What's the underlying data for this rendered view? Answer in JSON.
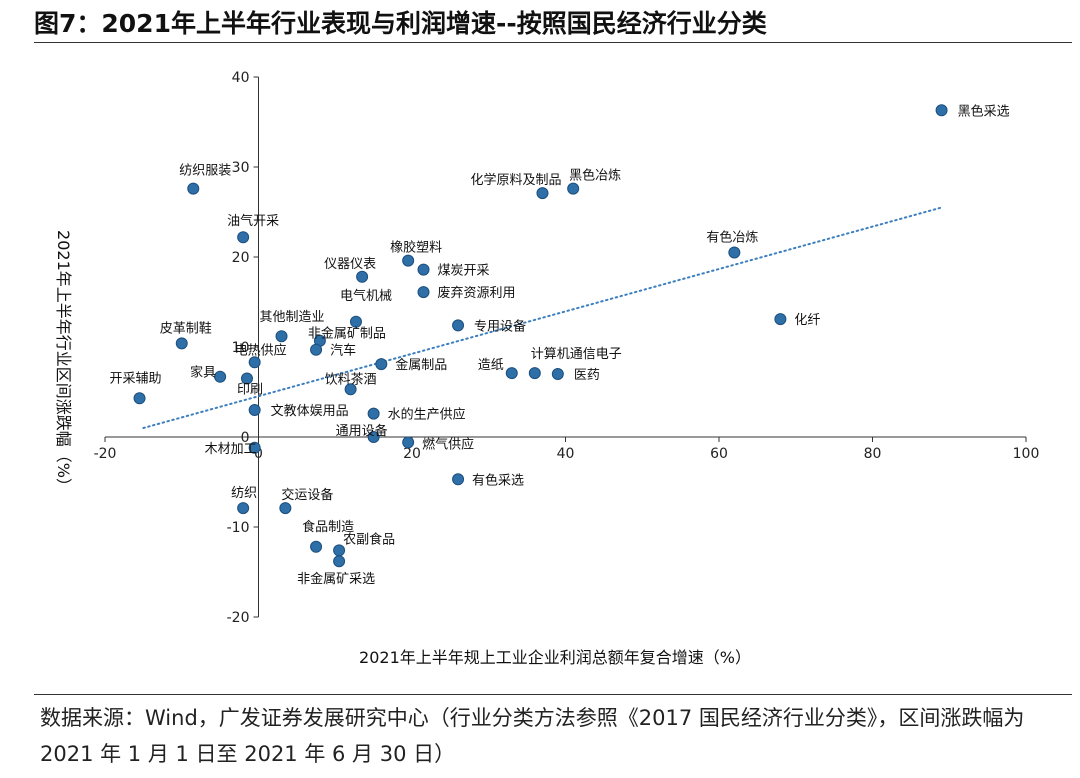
{
  "title": "图7：2021年上半年行业表现与利润增速--按照国民经济行业分类",
  "source": "数据来源：Wind，广发证券发展研究中心（行业分类方法参照《2017 国民经济行业分类》，区间涨跌幅为 2021 年 1 月 1 日至 2021 年 6 月 30 日）",
  "colors": {
    "point": "#2e6fa8",
    "point_stroke": "#1d4f7e",
    "trend": "#3c7fc0"
  },
  "chart_data": {
    "type": "scatter",
    "xlabel": "2021年上半年规上工业企业利润总额年复合增速（%）",
    "ylabel": "2021年上半年行业区间涨跌幅（%）",
    "xlim": [
      -20,
      100
    ],
    "ylim": [
      -20,
      40
    ],
    "x_ticks": [
      "-20",
      "0",
      "20",
      "40",
      "60",
      "80",
      "100"
    ],
    "y_ticks": [
      "40",
      "30",
      "20",
      "10",
      "0",
      "-10",
      "-20"
    ],
    "trendline": {
      "style": "dotted",
      "from": [
        -15,
        1
      ],
      "to": [
        89,
        25.5
      ]
    },
    "points": [
      {
        "label": "黑色采选",
        "x": 89.0,
        "y": 36.3
      },
      {
        "label": "纺织服装",
        "x": -8.5,
        "y": 27.6
      },
      {
        "label": "化学原料及制品",
        "x": 37.0,
        "y": 27.1
      },
      {
        "label": "黑色冶炼",
        "x": 41.0,
        "y": 27.6
      },
      {
        "label": "油气开采",
        "x": -2.0,
        "y": 22.2
      },
      {
        "label": "有色冶炼",
        "x": 62.0,
        "y": 20.5
      },
      {
        "label": "橡胶塑料",
        "x": 19.5,
        "y": 19.6
      },
      {
        "label": "仪器仪表",
        "x": 13.5,
        "y": 17.8
      },
      {
        "label": "煤炭开采",
        "x": 21.5,
        "y": 18.6
      },
      {
        "label": "废弃资源利用",
        "x": 21.5,
        "y": 16.1
      },
      {
        "label": "电气机械",
        "x": 12.7,
        "y": 12.8
      },
      {
        "label": "化纤",
        "x": 68.0,
        "y": 13.1
      },
      {
        "label": "专用设备",
        "x": 26.0,
        "y": 12.4
      },
      {
        "label": "其他制造业",
        "x": 3.0,
        "y": 11.2
      },
      {
        "label": "非金属矿制品",
        "x": 8.0,
        "y": 10.7
      },
      {
        "label": "皮革制鞋",
        "x": -10.0,
        "y": 10.4
      },
      {
        "label": "电热供应",
        "x": -0.5,
        "y": 8.3
      },
      {
        "label": "汽车",
        "x": 7.5,
        "y": 9.7
      },
      {
        "label": "金属制品",
        "x": 16.0,
        "y": 8.1
      },
      {
        "label": "造纸",
        "x": 33.0,
        "y": 7.1
      },
      {
        "label": "计算机通信电子",
        "x": 36.0,
        "y": 7.1
      },
      {
        "label": "医药",
        "x": 39.0,
        "y": 7.0
      },
      {
        "label": "家具",
        "x": -5.0,
        "y": 6.7
      },
      {
        "label": "印刷",
        "x": -1.5,
        "y": 6.5
      },
      {
        "label": "饮料茶酒",
        "x": 12.0,
        "y": 5.3
      },
      {
        "label": "开采辅助",
        "x": -15.5,
        "y": 4.3
      },
      {
        "label": "文教体娱用品",
        "x": -0.5,
        "y": 3.0
      },
      {
        "label": "水的生产供应",
        "x": 15.0,
        "y": 2.6
      },
      {
        "label": "通用设备",
        "x": 15.0,
        "y": 0.0
      },
      {
        "label": "燃气供应",
        "x": 19.5,
        "y": -0.6
      },
      {
        "label": "木材加工",
        "x": -0.5,
        "y": -1.2
      },
      {
        "label": "有色采选",
        "x": 26.0,
        "y": -4.7
      },
      {
        "label": "纺织",
        "x": -2.0,
        "y": -7.9
      },
      {
        "label": "交运设备",
        "x": 3.5,
        "y": -7.9
      },
      {
        "label": "食品制造",
        "x": 7.5,
        "y": -12.2
      },
      {
        "label": "农副食品",
        "x": 10.5,
        "y": -12.6
      },
      {
        "label": "非金属矿采选",
        "x": 10.5,
        "y": -13.8
      }
    ]
  }
}
